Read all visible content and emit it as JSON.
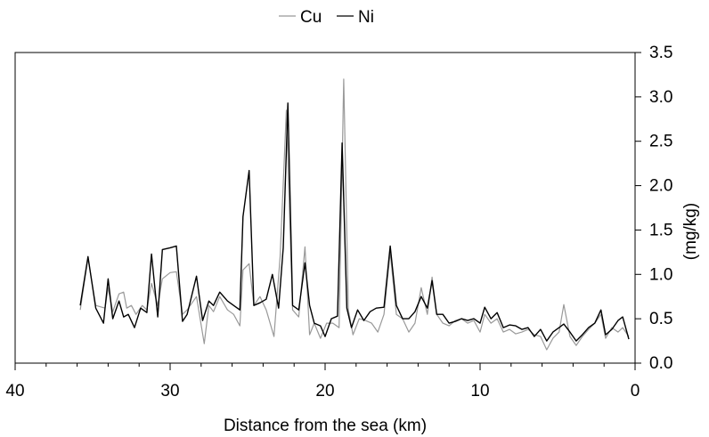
{
  "chart_data": {
    "type": "line",
    "title": "",
    "xlabel": "Distance from the sea (km)",
    "ylabel": "(mg/kg)",
    "x_reversed": true,
    "xlim": [
      0,
      40
    ],
    "ylim": [
      0,
      3.5
    ],
    "x_ticks": [
      "40",
      "30",
      "20",
      "10",
      "0"
    ],
    "x_tick_values": [
      40,
      30,
      20,
      10,
      0
    ],
    "y_ticks": [
      "0.0",
      "0.5",
      "1.0",
      "1.5",
      "2.0",
      "2.5",
      "3.0",
      "3.5"
    ],
    "y_tick_values": [
      0,
      0.5,
      1,
      1.5,
      2,
      2.5,
      3,
      3.5
    ],
    "legend_position": "top-center",
    "grid": false,
    "series": [
      {
        "name": "Cu",
        "color": "#999999",
        "points": [
          [
            35.8,
            0.6
          ],
          [
            35.3,
            1.18
          ],
          [
            34.8,
            0.65
          ],
          [
            34.2,
            0.62
          ],
          [
            34.0,
            0.85
          ],
          [
            33.7,
            0.58
          ],
          [
            33.3,
            0.78
          ],
          [
            33.0,
            0.8
          ],
          [
            32.8,
            0.62
          ],
          [
            32.5,
            0.65
          ],
          [
            32.2,
            0.55
          ],
          [
            31.8,
            0.65
          ],
          [
            31.5,
            0.6
          ],
          [
            31.2,
            0.9
          ],
          [
            30.8,
            0.65
          ],
          [
            30.5,
            0.95
          ],
          [
            30.0,
            1.02
          ],
          [
            29.6,
            1.03
          ],
          [
            29.2,
            0.55
          ],
          [
            28.9,
            0.6
          ],
          [
            28.3,
            0.75
          ],
          [
            27.8,
            0.22
          ],
          [
            27.5,
            0.65
          ],
          [
            27.2,
            0.58
          ],
          [
            26.8,
            0.75
          ],
          [
            26.3,
            0.6
          ],
          [
            25.9,
            0.55
          ],
          [
            25.5,
            0.42
          ],
          [
            25.3,
            1.05
          ],
          [
            24.9,
            1.12
          ],
          [
            24.6,
            0.65
          ],
          [
            24.2,
            0.75
          ],
          [
            23.8,
            0.6
          ],
          [
            23.3,
            0.3
          ],
          [
            22.9,
            1.2
          ],
          [
            22.5,
            2.85
          ],
          [
            22.1,
            0.6
          ],
          [
            21.7,
            0.52
          ],
          [
            21.3,
            1.31
          ],
          [
            21.0,
            0.32
          ],
          [
            20.7,
            0.45
          ],
          [
            20.3,
            0.28
          ],
          [
            19.9,
            0.45
          ],
          [
            19.5,
            0.45
          ],
          [
            19.1,
            0.4
          ],
          [
            18.8,
            3.2
          ],
          [
            18.5,
            0.6
          ],
          [
            18.2,
            0.32
          ],
          [
            17.8,
            0.5
          ],
          [
            17.4,
            0.48
          ],
          [
            17.0,
            0.45
          ],
          [
            16.6,
            0.35
          ],
          [
            16.2,
            0.55
          ],
          [
            15.8,
            1.25
          ],
          [
            15.4,
            0.55
          ],
          [
            15.0,
            0.5
          ],
          [
            14.6,
            0.35
          ],
          [
            14.2,
            0.45
          ],
          [
            13.8,
            0.85
          ],
          [
            13.4,
            0.55
          ],
          [
            13.1,
            0.97
          ],
          [
            12.8,
            0.55
          ],
          [
            12.4,
            0.45
          ],
          [
            12.0,
            0.42
          ],
          [
            11.6,
            0.48
          ],
          [
            11.2,
            0.5
          ],
          [
            10.8,
            0.45
          ],
          [
            10.4,
            0.48
          ],
          [
            10.0,
            0.35
          ],
          [
            9.7,
            0.55
          ],
          [
            9.3,
            0.45
          ],
          [
            8.9,
            0.5
          ],
          [
            8.5,
            0.35
          ],
          [
            8.1,
            0.38
          ],
          [
            7.7,
            0.33
          ],
          [
            7.3,
            0.35
          ],
          [
            6.9,
            0.38
          ],
          [
            6.5,
            0.32
          ],
          [
            6.1,
            0.3
          ],
          [
            5.7,
            0.15
          ],
          [
            5.3,
            0.28
          ],
          [
            4.9,
            0.35
          ],
          [
            4.6,
            0.66
          ],
          [
            4.2,
            0.3
          ],
          [
            3.8,
            0.2
          ],
          [
            3.4,
            0.3
          ],
          [
            3.0,
            0.38
          ],
          [
            2.6,
            0.45
          ],
          [
            2.2,
            0.55
          ],
          [
            1.9,
            0.28
          ],
          [
            1.5,
            0.4
          ],
          [
            1.1,
            0.35
          ],
          [
            0.8,
            0.4
          ],
          [
            0.4,
            0.3
          ]
        ]
      },
      {
        "name": "Ni",
        "color": "#000000",
        "points": [
          [
            35.8,
            0.65
          ],
          [
            35.3,
            1.2
          ],
          [
            34.8,
            0.62
          ],
          [
            34.3,
            0.45
          ],
          [
            34.0,
            0.95
          ],
          [
            33.7,
            0.5
          ],
          [
            33.3,
            0.7
          ],
          [
            33.0,
            0.52
          ],
          [
            32.7,
            0.55
          ],
          [
            32.3,
            0.4
          ],
          [
            31.9,
            0.62
          ],
          [
            31.5,
            0.57
          ],
          [
            31.2,
            1.23
          ],
          [
            30.8,
            0.52
          ],
          [
            30.5,
            1.28
          ],
          [
            30.0,
            1.3
          ],
          [
            29.6,
            1.32
          ],
          [
            29.2,
            0.47
          ],
          [
            28.9,
            0.55
          ],
          [
            28.3,
            0.98
          ],
          [
            27.9,
            0.48
          ],
          [
            27.5,
            0.7
          ],
          [
            27.2,
            0.65
          ],
          [
            26.8,
            0.8
          ],
          [
            26.3,
            0.7
          ],
          [
            25.9,
            0.65
          ],
          [
            25.5,
            0.6
          ],
          [
            25.3,
            1.65
          ],
          [
            24.9,
            2.17
          ],
          [
            24.6,
            0.65
          ],
          [
            24.2,
            0.68
          ],
          [
            23.8,
            0.72
          ],
          [
            23.4,
            1.0
          ],
          [
            23.0,
            0.62
          ],
          [
            22.7,
            1.3
          ],
          [
            22.4,
            2.93
          ],
          [
            22.1,
            0.65
          ],
          [
            21.7,
            0.6
          ],
          [
            21.3,
            1.13
          ],
          [
            21.0,
            0.65
          ],
          [
            20.7,
            0.45
          ],
          [
            20.3,
            0.42
          ],
          [
            20.0,
            0.3
          ],
          [
            19.6,
            0.5
          ],
          [
            19.2,
            0.53
          ],
          [
            18.9,
            2.48
          ],
          [
            18.6,
            0.62
          ],
          [
            18.3,
            0.4
          ],
          [
            17.9,
            0.6
          ],
          [
            17.5,
            0.48
          ],
          [
            17.1,
            0.58
          ],
          [
            16.7,
            0.62
          ],
          [
            16.2,
            0.63
          ],
          [
            15.8,
            1.32
          ],
          [
            15.4,
            0.65
          ],
          [
            15.0,
            0.5
          ],
          [
            14.6,
            0.5
          ],
          [
            14.2,
            0.58
          ],
          [
            13.8,
            0.75
          ],
          [
            13.4,
            0.62
          ],
          [
            13.1,
            0.93
          ],
          [
            12.8,
            0.55
          ],
          [
            12.4,
            0.55
          ],
          [
            12.0,
            0.45
          ],
          [
            11.6,
            0.47
          ],
          [
            11.2,
            0.5
          ],
          [
            10.8,
            0.48
          ],
          [
            10.4,
            0.5
          ],
          [
            10.0,
            0.45
          ],
          [
            9.7,
            0.63
          ],
          [
            9.3,
            0.5
          ],
          [
            8.9,
            0.57
          ],
          [
            8.5,
            0.4
          ],
          [
            8.1,
            0.43
          ],
          [
            7.7,
            0.42
          ],
          [
            7.3,
            0.38
          ],
          [
            6.9,
            0.4
          ],
          [
            6.5,
            0.3
          ],
          [
            6.1,
            0.38
          ],
          [
            5.7,
            0.25
          ],
          [
            5.3,
            0.35
          ],
          [
            4.9,
            0.4
          ],
          [
            4.6,
            0.44
          ],
          [
            4.2,
            0.35
          ],
          [
            3.8,
            0.25
          ],
          [
            3.4,
            0.32
          ],
          [
            3.0,
            0.4
          ],
          [
            2.6,
            0.45
          ],
          [
            2.2,
            0.6
          ],
          [
            1.9,
            0.32
          ],
          [
            1.5,
            0.38
          ],
          [
            1.1,
            0.48
          ],
          [
            0.8,
            0.52
          ],
          [
            0.4,
            0.27
          ]
        ]
      }
    ]
  }
}
